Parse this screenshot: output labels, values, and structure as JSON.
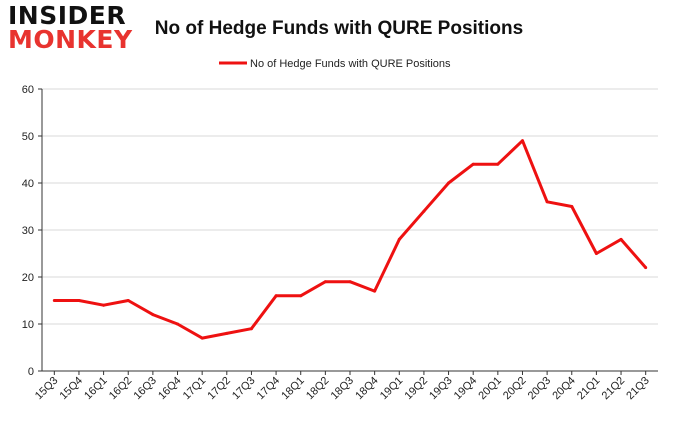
{
  "logo": {
    "line1": "INSIDER",
    "line2": "MONKEY"
  },
  "colors": {
    "series": "#ee1111",
    "grid": "#d9d9d9",
    "axis": "#333333",
    "logo_accent": "#e8332f"
  },
  "chart_data": {
    "type": "line",
    "title": "No of Hedge Funds with QURE Positions",
    "xlabel": "",
    "ylabel": "",
    "ylim": [
      0,
      60
    ],
    "yticks": [
      0,
      10,
      20,
      30,
      40,
      50,
      60
    ],
    "grid": true,
    "legend": "top-center",
    "categories": [
      "15Q3",
      "15Q4",
      "16Q1",
      "16Q2",
      "16Q3",
      "16Q4",
      "17Q1",
      "17Q2",
      "17Q3",
      "17Q4",
      "18Q1",
      "18Q2",
      "18Q3",
      "18Q4",
      "19Q1",
      "19Q2",
      "19Q3",
      "19Q4",
      "20Q1",
      "20Q2",
      "20Q3",
      "20Q4",
      "21Q1",
      "21Q2",
      "21Q3"
    ],
    "series": [
      {
        "name": "No of Hedge Funds with QURE Positions",
        "values": [
          15,
          15,
          14,
          15,
          12,
          10,
          7,
          8,
          9,
          16,
          16,
          19,
          19,
          17,
          28,
          34,
          40,
          44,
          44,
          49,
          36,
          35,
          25,
          28,
          22
        ]
      }
    ]
  }
}
